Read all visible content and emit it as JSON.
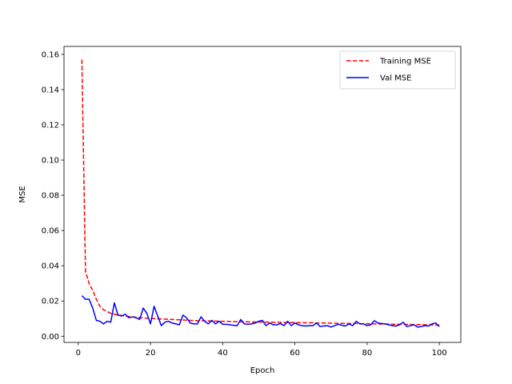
{
  "chart_data": {
    "type": "line",
    "title": "",
    "xlabel": "Epoch",
    "ylabel": "MSE",
    "xlim": [
      -3.95,
      105.95
    ],
    "ylim": [
      -0.0035,
      0.1645
    ],
    "xticks": [
      0,
      20,
      40,
      60,
      80,
      100
    ],
    "xtick_labels": [
      "0",
      "20",
      "40",
      "60",
      "80",
      "100"
    ],
    "yticks": [
      0.0,
      0.02,
      0.04,
      0.06,
      0.08,
      0.1,
      0.12,
      0.14,
      0.16
    ],
    "ytick_labels": [
      "0.00",
      "0.02",
      "0.04",
      "0.06",
      "0.08",
      "0.10",
      "0.12",
      "0.14",
      "0.16"
    ],
    "grid": false,
    "legend_position": "upper right",
    "x": [
      1,
      2,
      3,
      4,
      5,
      6,
      7,
      8,
      9,
      10,
      11,
      12,
      13,
      14,
      15,
      16,
      17,
      18,
      19,
      20,
      21,
      22,
      23,
      24,
      25,
      26,
      27,
      28,
      29,
      30,
      31,
      32,
      33,
      34,
      35,
      36,
      37,
      38,
      39,
      40,
      41,
      42,
      43,
      44,
      45,
      46,
      47,
      48,
      49,
      50,
      51,
      52,
      53,
      54,
      55,
      56,
      57,
      58,
      59,
      60,
      61,
      62,
      63,
      64,
      65,
      66,
      67,
      68,
      69,
      70,
      71,
      72,
      73,
      74,
      75,
      76,
      77,
      78,
      79,
      80,
      81,
      82,
      83,
      84,
      85,
      86,
      87,
      88,
      89,
      90,
      91,
      92,
      93,
      94,
      95,
      96,
      97,
      98,
      99,
      100
    ],
    "series": [
      {
        "name": "Training MSE",
        "color": "#ff0000",
        "style": "dashed",
        "values": [
          0.157,
          0.037,
          0.03,
          0.026,
          0.021,
          0.017,
          0.015,
          0.014,
          0.013,
          0.0125,
          0.012,
          0.0118,
          0.0115,
          0.0112,
          0.011,
          0.0108,
          0.0106,
          0.0104,
          0.0102,
          0.0101,
          0.01,
          0.0099,
          0.0098,
          0.0097,
          0.0096,
          0.0095,
          0.0094,
          0.0093,
          0.0092,
          0.0091,
          0.009,
          0.0089,
          0.0088,
          0.0088,
          0.0087,
          0.0087,
          0.0086,
          0.0086,
          0.0085,
          0.0085,
          0.0084,
          0.0084,
          0.0083,
          0.0083,
          0.0082,
          0.0082,
          0.0082,
          0.0081,
          0.0081,
          0.0081,
          0.008,
          0.008,
          0.008,
          0.0079,
          0.0079,
          0.0079,
          0.0078,
          0.0078,
          0.0078,
          0.0077,
          0.0077,
          0.0077,
          0.0076,
          0.0076,
          0.0076,
          0.0075,
          0.0075,
          0.0075,
          0.0074,
          0.0074,
          0.0074,
          0.0073,
          0.0073,
          0.0073,
          0.0072,
          0.0072,
          0.0072,
          0.0071,
          0.0071,
          0.0071,
          0.007,
          0.007,
          0.007,
          0.0069,
          0.0069,
          0.0069,
          0.0068,
          0.0068,
          0.0068,
          0.0067,
          0.0067,
          0.0067,
          0.0066,
          0.0066,
          0.0066,
          0.0065,
          0.0065,
          0.0064,
          0.0064,
          0.0063
        ]
      },
      {
        "name": "Val MSE",
        "color": "#0000ff",
        "style": "solid",
        "values": [
          0.023,
          0.021,
          0.021,
          0.016,
          0.009,
          0.0085,
          0.007,
          0.0085,
          0.008,
          0.019,
          0.012,
          0.0115,
          0.0125,
          0.0105,
          0.011,
          0.0105,
          0.0095,
          0.016,
          0.013,
          0.007,
          0.017,
          0.0115,
          0.006,
          0.008,
          0.0085,
          0.0075,
          0.007,
          0.0065,
          0.012,
          0.0105,
          0.0075,
          0.007,
          0.007,
          0.011,
          0.0085,
          0.007,
          0.009,
          0.007,
          0.0085,
          0.0068,
          0.0068,
          0.0065,
          0.0062,
          0.006,
          0.0095,
          0.007,
          0.0068,
          0.007,
          0.0075,
          0.0085,
          0.009,
          0.006,
          0.0075,
          0.0065,
          0.0065,
          0.0072,
          0.006,
          0.0085,
          0.006,
          0.0075,
          0.0065,
          0.006,
          0.0058,
          0.006,
          0.006,
          0.0075,
          0.0055,
          0.0058,
          0.006,
          0.0052,
          0.006,
          0.0068,
          0.0062,
          0.0058,
          0.007,
          0.006,
          0.0085,
          0.007,
          0.007,
          0.006,
          0.0065,
          0.0088,
          0.0075,
          0.0072,
          0.007,
          0.0065,
          0.006,
          0.0058,
          0.0065,
          0.008,
          0.0055,
          0.006,
          0.0065,
          0.0052,
          0.0055,
          0.006,
          0.0058,
          0.007,
          0.0075,
          0.0055
        ]
      }
    ]
  }
}
